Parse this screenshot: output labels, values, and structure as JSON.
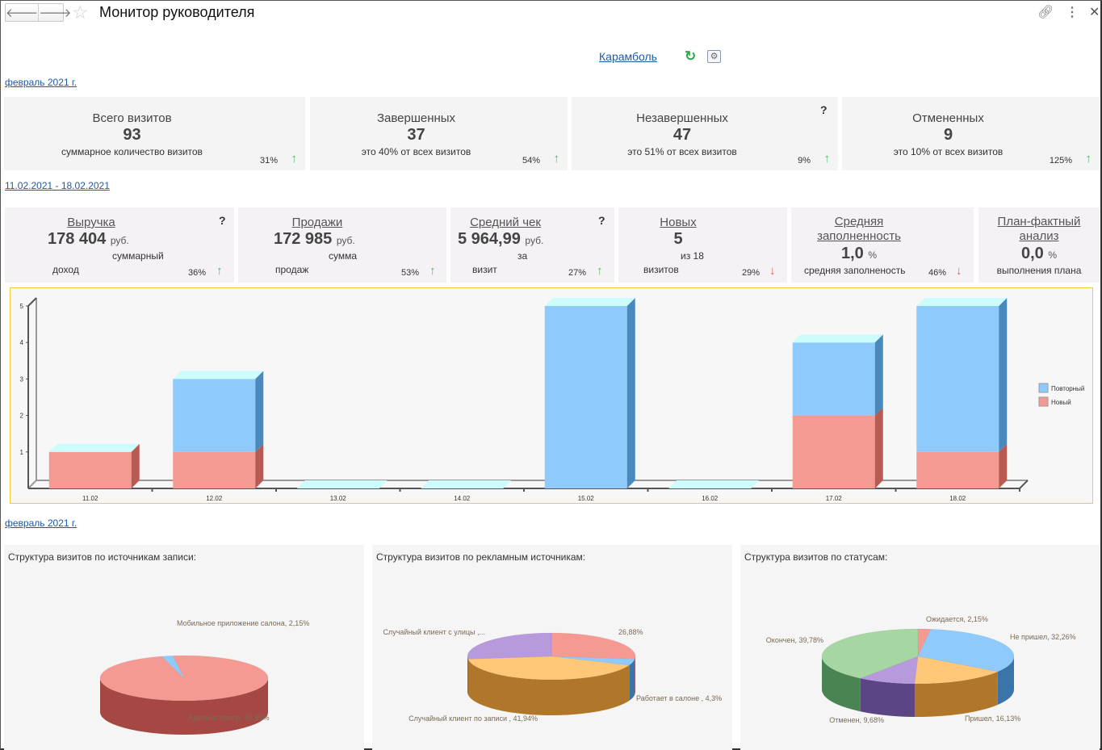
{
  "header": {
    "title": "Монитор руководителя",
    "back_icon": "arrow-left-icon",
    "forward_icon": "arrow-right-icon",
    "favorite_icon": "star-icon",
    "link_icon": "link-icon",
    "menu_icon": "more-vertical-icon",
    "close_icon": "close-icon"
  },
  "company": {
    "name": "Карамболь",
    "refresh_icon": "refresh-icon",
    "settings_icon": "settings-icon"
  },
  "period1": "февраль 2021 г.",
  "visits_cards": [
    {
      "title": "Всего визитов",
      "value": "93",
      "subtitle": "суммарное количество визитов",
      "change": "31%",
      "trend": "up",
      "help": ""
    },
    {
      "title": "Завершенных",
      "value": "37",
      "subtitle": "это 40% от всех визитов",
      "change": "54%",
      "trend": "up",
      "help": ""
    },
    {
      "title": "Незавершенных",
      "value": "47",
      "subtitle": "это 51% от всех визитов",
      "change": "9%",
      "trend": "up",
      "help": "?"
    },
    {
      "title": "Отмененных",
      "value": "9",
      "subtitle": "это 10% от всех визитов",
      "change": "125%",
      "trend": "up",
      "help": ""
    }
  ],
  "period2": "11.02.2021 - 18.02.2021",
  "finance_cards": [
    {
      "title": "Выручка",
      "value": "178 404",
      "unit": "руб.",
      "sub1": "суммарный",
      "sub2": "доход",
      "change": "36%",
      "trend": "up",
      "help": "?"
    },
    {
      "title": "Продажи",
      "value": "172 985",
      "unit": "руб.",
      "sub1": "сумма",
      "sub2": "продаж",
      "change": "53%",
      "trend": "up",
      "help": ""
    },
    {
      "title": "Средний чек",
      "value": "5 964,99",
      "unit": "руб.",
      "sub1": "за",
      "sub2": "визит",
      "change": "27%",
      "trend": "up",
      "help": "?"
    },
    {
      "title": "Новых",
      "value": "5",
      "unit": "",
      "sub1": "из 18",
      "sub2": "визитов",
      "change": "29%",
      "trend": "down",
      "help": ""
    },
    {
      "title_line1": "Средняя",
      "title_line2": "заполненность",
      "value": "1,0",
      "unit": "%",
      "sub1": "средняя заполненость",
      "change": "46%",
      "trend": "down"
    },
    {
      "title_line1": "План-фактный",
      "title_line2": "анализ",
      "value": "0,0",
      "unit": "%",
      "sub1": "выполнения плана"
    }
  ],
  "trend_icons": {
    "up": "↑",
    "down": "↓"
  },
  "chart_data": [
    {
      "type": "bar",
      "stacked": true,
      "title": "",
      "xlabel": "",
      "ylabel": "",
      "categories": [
        "11.02",
        "12.02",
        "13.02",
        "14.02",
        "15.02",
        "16.02",
        "17.02",
        "18.02"
      ],
      "series": [
        {
          "name": "Новый",
          "color": "#f59a92",
          "values": [
            1,
            1,
            0,
            0,
            0,
            0,
            2,
            1
          ]
        },
        {
          "name": "Повторный",
          "color": "#8ecbfc",
          "values": [
            0,
            2,
            0,
            0,
            5,
            0,
            2,
            4
          ]
        }
      ],
      "ylim": [
        0,
        5
      ],
      "yticks": [
        "1",
        "2",
        "3",
        "4",
        "5"
      ],
      "legend": "right",
      "grid": false
    },
    {
      "type": "pie",
      "title": "Структура визитов по источникам записи:",
      "slices": [
        {
          "label": "Администратор, 97,85%",
          "value": 97.85,
          "color": "#f59a92",
          "side": "#a54844"
        },
        {
          "label": "Мобильное приложение салона, 2,15%",
          "value": 2.15,
          "color": "#8ecbfc",
          "side": "#3a74a8"
        }
      ]
    },
    {
      "type": "pie",
      "title": "Структура визитов по рекламным источникам:",
      "slices": [
        {
          "label": "26,88%",
          "value": 26.88,
          "color": "#f59a92",
          "side": "#a54844"
        },
        {
          "label": "Работает в салоне , 4,3%",
          "value": 4.3,
          "color": "#8ecbfc",
          "side": "#3a74a8"
        },
        {
          "label": "Случайный клиент по записи , 41,94%",
          "value": 41.94,
          "color": "#ffc878",
          "side": "#b0762a"
        },
        {
          "label": "Случайный клиент с улицы ,...",
          "value": 26.88,
          "color": "#b79adc",
          "side": "#5b4585"
        }
      ]
    },
    {
      "type": "pie",
      "title": "Структура визитов по статусам:",
      "slices": [
        {
          "label": "Ожидается, 2,15%",
          "value": 2.15,
          "color": "#f59a92",
          "side": "#a54844"
        },
        {
          "label": "Не пришел, 32,26%",
          "value": 32.26,
          "color": "#8ecbfc",
          "side": "#3a74a8"
        },
        {
          "label": "Пришел, 16,13%",
          "value": 16.13,
          "color": "#ffc878",
          "side": "#b0762a"
        },
        {
          "label": "Отменен, 9,68%",
          "value": 9.68,
          "color": "#b79adc",
          "side": "#5b4585"
        },
        {
          "label": "Окончен, 39,78%",
          "value": 39.78,
          "color": "#a6d6a2",
          "side": "#4a8452"
        }
      ]
    }
  ],
  "period3": "февраль 2021 г."
}
